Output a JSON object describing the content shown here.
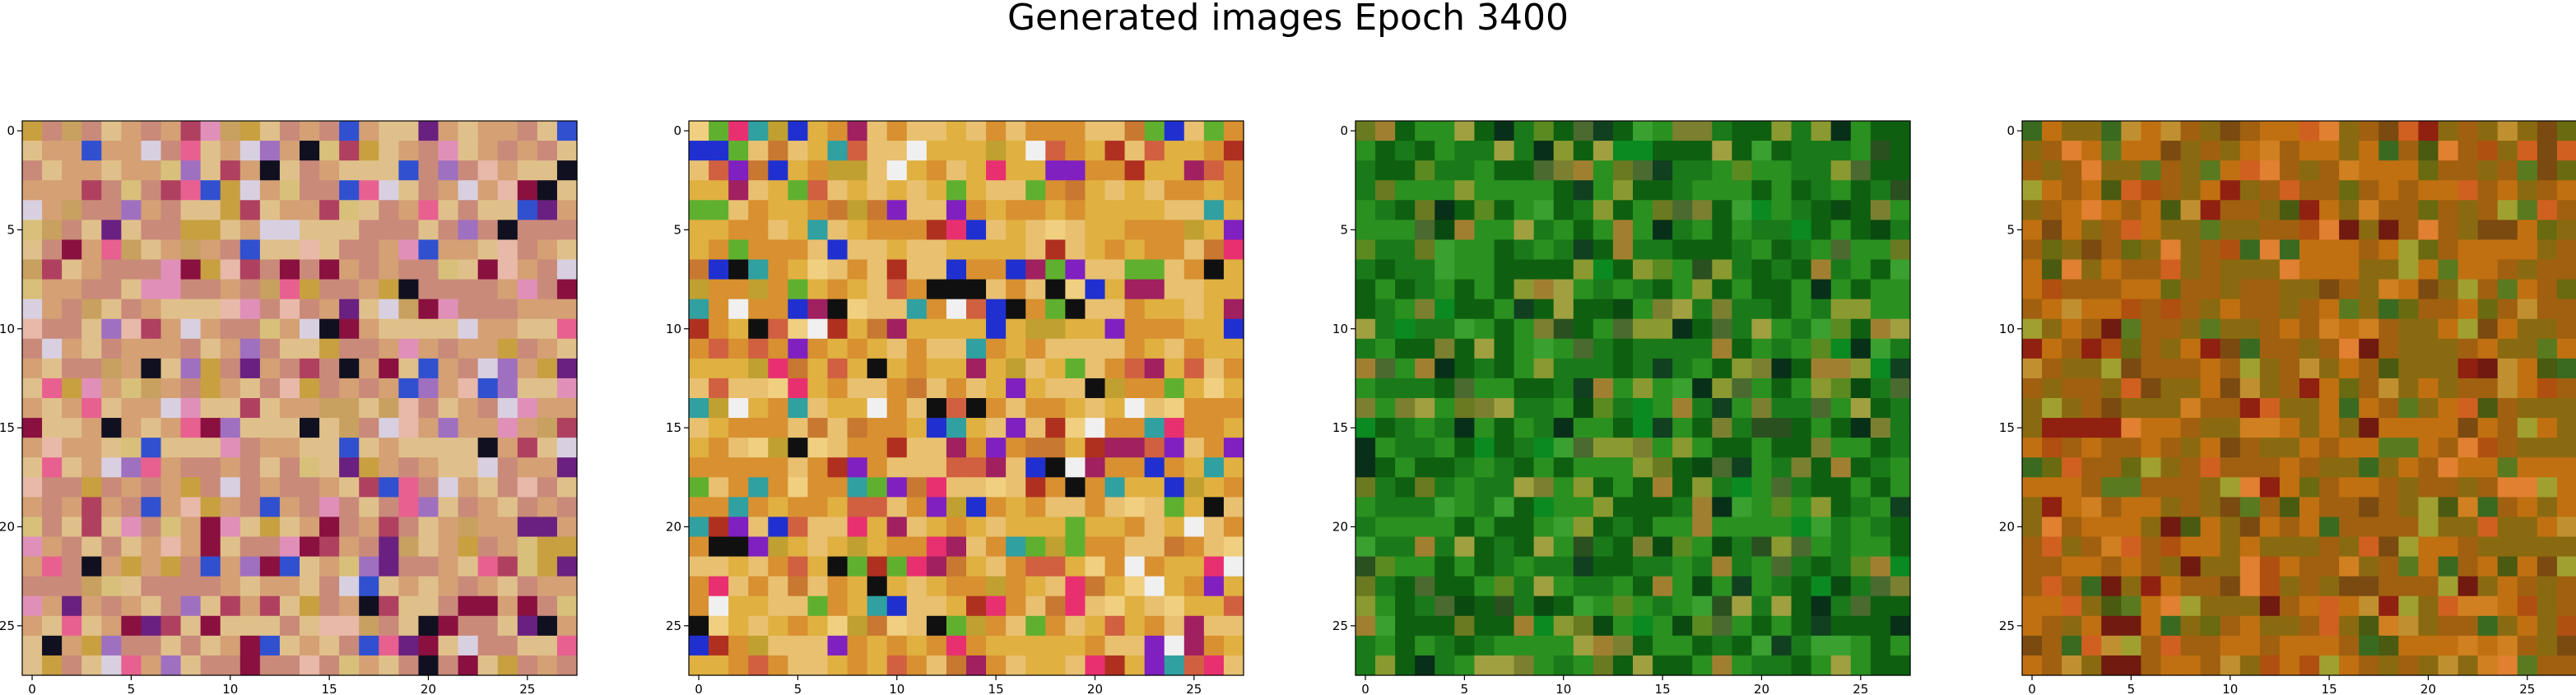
{
  "figure": {
    "title": "Generated images Epoch 3400"
  },
  "chart_data": [
    {
      "type": "heatmap",
      "grid_size": 28,
      "x_ticks": [
        0,
        5,
        10,
        15,
        20,
        25
      ],
      "y_ticks": [
        0,
        5,
        10,
        15,
        20,
        25
      ],
      "xlim": [
        -0.5,
        27.5
      ],
      "ylim": [
        27.5,
        -0.5
      ],
      "palette": [
        "#e0c08a",
        "#d4a074",
        "#c98a7a",
        "#e8b8a8",
        "#d8c07a",
        "#c8a060",
        "#e090b8",
        "#a070c0",
        "#b04060",
        "#e86090",
        "#8a1040",
        "#6a2080",
        "#3050d0",
        "#101020",
        "#d8d0e0",
        "#c8a040"
      ],
      "dominant_colors": [
        "#e0c08a",
        "#d4a074",
        "#c98a7a"
      ]
    },
    {
      "type": "heatmap",
      "grid_size": 28,
      "x_ticks": [
        0,
        5,
        10,
        15,
        20,
        25
      ],
      "y_ticks": [
        0,
        5,
        10,
        15,
        20,
        25
      ],
      "xlim": [
        -0.5,
        27.5
      ],
      "ylim": [
        27.5,
        -0.5
      ],
      "palette": [
        "#e0b040",
        "#d89030",
        "#e8c070",
        "#c87830",
        "#f0d080",
        "#d06040",
        "#b03020",
        "#e83070",
        "#8020c0",
        "#2030d0",
        "#101010",
        "#f0f0f0",
        "#30a0a0",
        "#60b030",
        "#a02060",
        "#c0a030"
      ],
      "dominant_colors": [
        "#e0b040",
        "#d89030",
        "#e8c070"
      ]
    },
    {
      "type": "heatmap",
      "grid_size": 28,
      "x_ticks": [
        0,
        5,
        10,
        15,
        20,
        25
      ],
      "y_ticks": [
        0,
        5,
        10,
        15,
        20,
        25
      ],
      "xlim": [
        -0.5,
        27.5
      ],
      "ylim": [
        27.5,
        -0.5
      ],
      "palette": [
        "#1a7a1a",
        "#0e6010",
        "#2a9020",
        "#0a4a10",
        "#5a8a20",
        "#8a9a30",
        "#3aa030",
        "#104020",
        "#6a7a20",
        "#a0a040",
        "#083018",
        "#4a6a30",
        "#0a8a20",
        "#7a8030",
        "#2a5020",
        "#a08030"
      ],
      "dominant_colors": [
        "#1a7a1a",
        "#0e6010",
        "#2a9020"
      ]
    },
    {
      "type": "heatmap",
      "grid_size": 28,
      "x_ticks": [
        0,
        5,
        10,
        15,
        20,
        25
      ],
      "y_ticks": [
        0,
        5,
        10,
        15,
        20,
        25
      ],
      "xlim": [
        -0.5,
        27.5
      ],
      "ylim": [
        27.5,
        -0.5
      ],
      "palette": [
        "#c07010",
        "#a06010",
        "#d08020",
        "#8a6a10",
        "#b05010",
        "#6a6a10",
        "#e08030",
        "#7a4a10",
        "#5a7a20",
        "#902010",
        "#c09030",
        "#4a5a10",
        "#a0a030",
        "#3a6a20",
        "#d06020",
        "#701a10"
      ],
      "dominant_colors": [
        "#c07010",
        "#a06010",
        "#8a6a10"
      ]
    }
  ]
}
